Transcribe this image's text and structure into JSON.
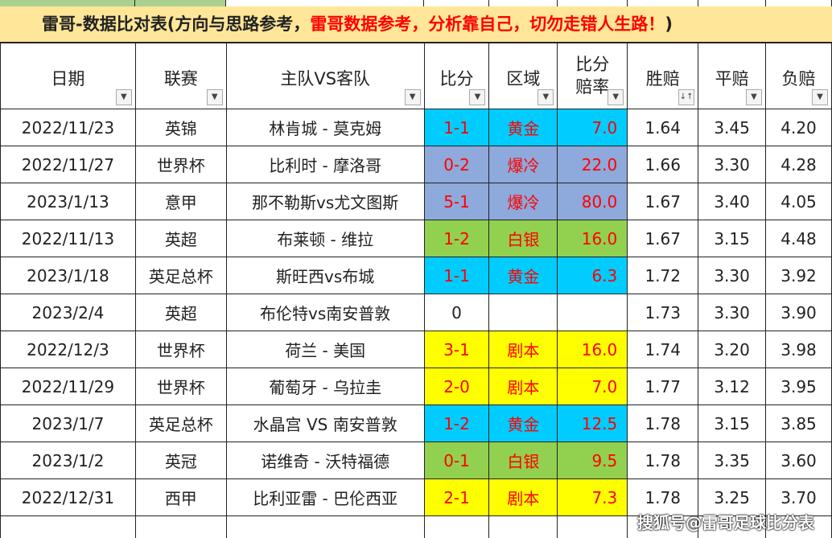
{
  "title": {
    "part1": "雷哥-数据比对表(方向与思路参考，",
    "part2": "雷哥数据参考，分析靠自己，切勿走错人生路！",
    "part3": ")"
  },
  "headers": [
    {
      "label": "日期"
    },
    {
      "label": "联赛"
    },
    {
      "label": "主队VS客队"
    },
    {
      "label": "比分"
    },
    {
      "label": "区域"
    },
    {
      "label": "比分",
      "label2": "赔率"
    },
    {
      "label": "胜赔"
    },
    {
      "label": "平赔"
    },
    {
      "label": "负赔"
    }
  ],
  "colors": {
    "cyan": "#00CCFF",
    "blue": "#8EA9DB",
    "green": "#92D050",
    "yellow": "#FFFF00",
    "red_text": "#FF0000",
    "title_bg": "#FFE699"
  },
  "rows": [
    {
      "date": "2022/11/23",
      "league": "英锦",
      "match": "林肯城 - 莫克姆",
      "score": "1-1",
      "zone": "黄金",
      "rate": "7.0",
      "win": "1.64",
      "draw": "3.45",
      "lose": "4.20",
      "color": "cyan"
    },
    {
      "date": "2022/11/27",
      "league": "世界杯",
      "match": "比利时 - 摩洛哥",
      "score": "0-2",
      "zone": "爆冷",
      "rate": "22.0",
      "win": "1.66",
      "draw": "3.30",
      "lose": "4.28",
      "color": "blue"
    },
    {
      "date": "2023/1/13",
      "league": "意甲",
      "match": "那不勒斯vs尤文图斯",
      "score": "5-1",
      "zone": "爆冷",
      "rate": "80.0",
      "win": "1.67",
      "draw": "3.40",
      "lose": "4.05",
      "color": "blue"
    },
    {
      "date": "2022/11/13",
      "league": "英超",
      "match": "布莱顿 - 维拉",
      "score": "1-2",
      "zone": "白银",
      "rate": "16.0",
      "win": "1.67",
      "draw": "3.15",
      "lose": "4.48",
      "color": "green"
    },
    {
      "date": "2023/1/18",
      "league": "英足总杯",
      "match": "斯旺西vs布城",
      "score": "1-1",
      "zone": "黄金",
      "rate": "6.3",
      "win": "1.72",
      "draw": "3.30",
      "lose": "3.92",
      "color": "cyan"
    },
    {
      "date": "2023/2/4",
      "league": "英超",
      "match": "布伦特vs南安普敦",
      "score": "0",
      "zone": "",
      "rate": "",
      "win": "1.73",
      "draw": "3.30",
      "lose": "3.90",
      "color": ""
    },
    {
      "date": "2022/12/3",
      "league": "世界杯",
      "match": "荷兰 - 美国",
      "score": "3-1",
      "zone": "剧本",
      "rate": "16.0",
      "win": "1.74",
      "draw": "3.20",
      "lose": "3.98",
      "color": "yellow"
    },
    {
      "date": "2022/11/29",
      "league": "世界杯",
      "match": "葡萄牙 - 乌拉圭",
      "score": "2-0",
      "zone": "剧本",
      "rate": "7.0",
      "win": "1.77",
      "draw": "3.12",
      "lose": "3.95",
      "color": "yellow"
    },
    {
      "date": "2023/1/7",
      "league": "英足总杯",
      "match": "水晶宫 VS 南安普敦",
      "score": "1-2",
      "zone": "黄金",
      "rate": "12.5",
      "win": "1.78",
      "draw": "3.15",
      "lose": "3.85",
      "color": "cyan"
    },
    {
      "date": "2023/1/2",
      "league": "英冠",
      "match": "诺维奇 - 沃特福德",
      "score": "0-1",
      "zone": "白银",
      "rate": "9.5",
      "win": "1.78",
      "draw": "3.35",
      "lose": "3.60",
      "color": "green"
    },
    {
      "date": "2022/12/31",
      "league": "西甲",
      "match": "比利亚雷 - 巴伦西亚",
      "score": "2-1",
      "zone": "剧本",
      "rate": "7.3",
      "win": "1.78",
      "draw": "3.25",
      "lose": "3.70",
      "color": "yellow"
    }
  ],
  "watermark": "搜狐号@雷哥足球比分表"
}
